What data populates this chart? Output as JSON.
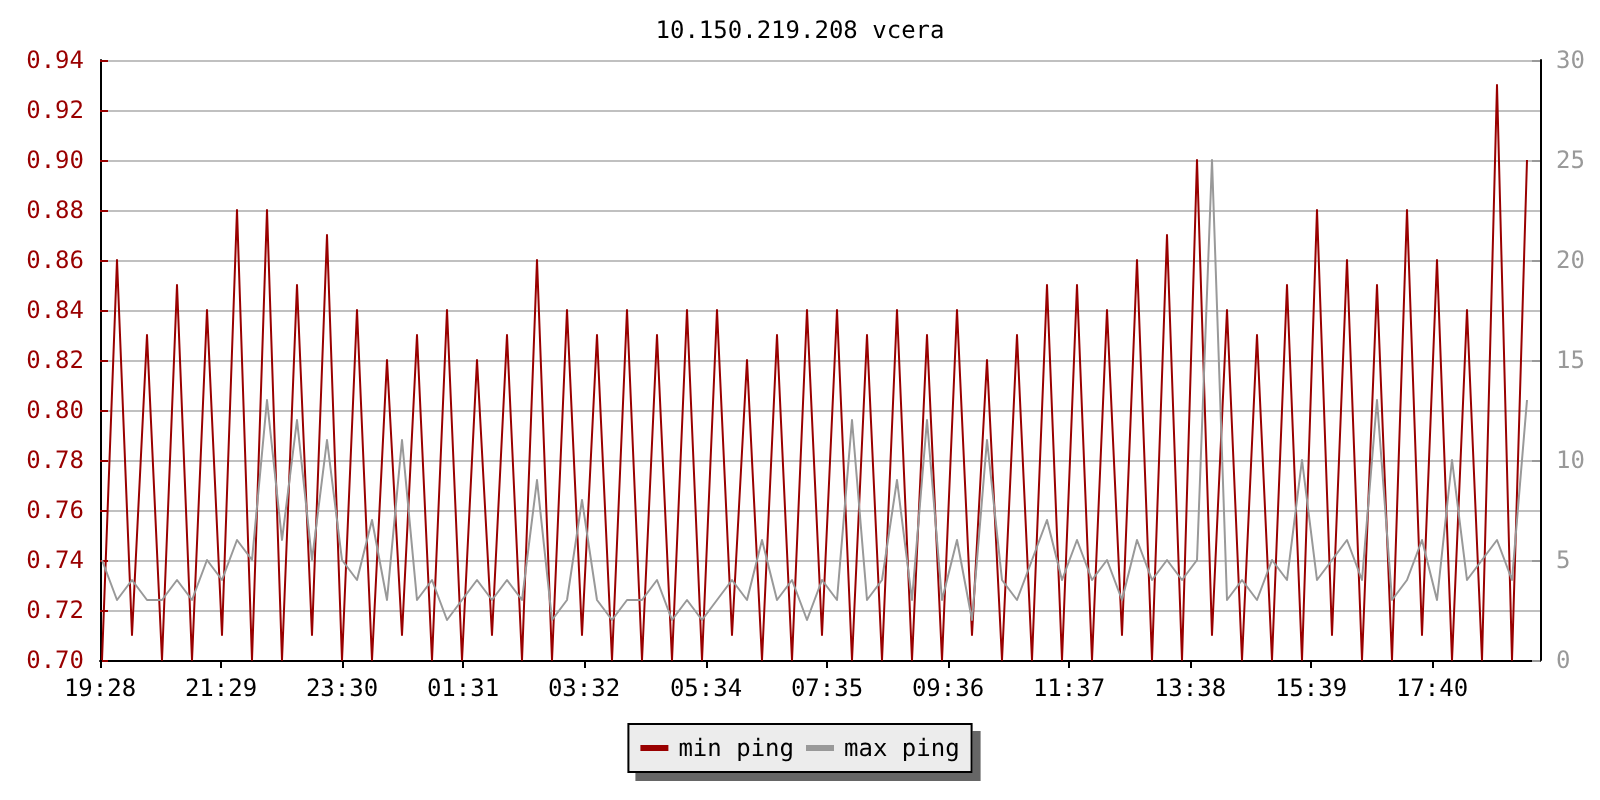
{
  "chart_data": {
    "type": "line",
    "title": "10.150.219.208 vcera",
    "marker": "none",
    "grid": "y",
    "legend": "bottom",
    "line_style": "solid",
    "xlim": [
      "--01-01T19:28",
      "--01-02T19:28"
    ],
    "xticks": [
      {
        "value": "--01-01T19:28",
        "label": "19:28"
      },
      {
        "value": "--01-01T21:29",
        "label": "21:29"
      },
      {
        "value": "--01-01T23:30",
        "label": "23:30"
      },
      {
        "value": "--01-02T01:31",
        "label": "01:31"
      },
      {
        "value": "--01-02T03:32",
        "label": "03:32"
      },
      {
        "value": "--01-02T05:34",
        "label": "05:34"
      },
      {
        "value": "--01-02T07:35",
        "label": "07:35"
      },
      {
        "value": "--01-02T09:36",
        "label": "09:36"
      },
      {
        "value": "--01-02T11:37",
        "label": "11:37"
      },
      {
        "value": "--01-02T13:38",
        "label": "13:38"
      },
      {
        "value": "--01-02T15:39",
        "label": "15:39"
      },
      {
        "value": "--01-02T17:40",
        "label": "17:40"
      }
    ],
    "ylim": [
      0.7,
      0.94
    ],
    "yticks": [
      {
        "value": 0.7,
        "label": "0.70"
      },
      0.72,
      0.74,
      0.76,
      0.78,
      {
        "value": 0.8,
        "label": "0.80"
      },
      0.82,
      0.84,
      0.86,
      0.88,
      {
        "value": 0.9,
        "label": "0.90"
      },
      0.92,
      0.94
    ],
    "y2lim": [
      0,
      30
    ],
    "y2ticks": [
      0,
      5,
      10,
      15,
      20,
      25,
      30
    ],
    "x": [
      "--01-01T19:30",
      "--01-01T19:45",
      "--01-01T20:00",
      "--01-01T20:15",
      "--01-01T20:30",
      "--01-01T20:45",
      "--01-01T21:00",
      "--01-01T21:15",
      "--01-01T21:30",
      "--01-01T21:45",
      "--01-01T22:00",
      "--01-01T22:15",
      "--01-01T22:30",
      "--01-01T22:45",
      "--01-01T23:00",
      "--01-01T23:15",
      "--01-01T23:30",
      "--01-01T23:45",
      "--01-02T00:00",
      "--01-02T00:15",
      "--01-02T00:30",
      "--01-02T00:45",
      "--01-02T01:00",
      "--01-02T01:15",
      "--01-02T01:30",
      "--01-02T01:45",
      "--01-02T02:00",
      "--01-02T02:15",
      "--01-02T02:30",
      "--01-02T02:45",
      "--01-02T03:00",
      "--01-02T03:15",
      "--01-02T03:30",
      "--01-02T03:45",
      "--01-02T04:00",
      "--01-02T04:15",
      "--01-02T04:30",
      "--01-02T04:45",
      "--01-02T05:00",
      "--01-02T05:15",
      "--01-02T05:30",
      "--01-02T05:45",
      "--01-02T06:00",
      "--01-02T06:15",
      "--01-02T06:30",
      "--01-02T06:45",
      "--01-02T07:00",
      "--01-02T07:15",
      "--01-02T07:30",
      "--01-02T07:45",
      "--01-02T08:00",
      "--01-02T08:15",
      "--01-02T08:30",
      "--01-02T08:45",
      "--01-02T09:00",
      "--01-02T09:15",
      "--01-02T09:30",
      "--01-02T09:45",
      "--01-02T10:00",
      "--01-02T10:15",
      "--01-02T10:30",
      "--01-02T10:45",
      "--01-02T11:00",
      "--01-02T11:15",
      "--01-02T11:30",
      "--01-02T11:45",
      "--01-02T12:00",
      "--01-02T12:15",
      "--01-02T12:30",
      "--01-02T12:45",
      "--01-02T13:00",
      "--01-02T13:15",
      "--01-02T13:30",
      "--01-02T13:45",
      "--01-02T14:00",
      "--01-02T14:15",
      "--01-02T14:30",
      "--01-02T14:45",
      "--01-02T15:00",
      "--01-02T15:15",
      "--01-02T15:30",
      "--01-02T15:45",
      "--01-02T16:00",
      "--01-02T16:15",
      "--01-02T16:30",
      "--01-02T16:45",
      "--01-02T17:00",
      "--01-02T17:15",
      "--01-02T17:30",
      "--01-02T17:45",
      "--01-02T18:00",
      "--01-02T18:15",
      "--01-02T18:30",
      "--01-02T18:45",
      "--01-02T19:00",
      "--01-02T19:15"
    ],
    "series": [
      {
        "name": "min ping",
        "color": "#990000",
        "values": [
          0.7,
          0.86,
          0.71,
          0.83,
          0.7,
          0.85,
          0.7,
          0.84,
          0.71,
          0.88,
          0.7,
          0.88,
          0.7,
          0.85,
          0.71,
          0.87,
          0.7,
          0.84,
          0.7,
          0.82,
          0.71,
          0.83,
          0.7,
          0.84,
          0.7,
          0.82,
          0.71,
          0.83,
          0.7,
          0.86,
          0.7,
          0.84,
          0.71,
          0.83,
          0.7,
          0.84,
          0.7,
          0.83,
          0.7,
          0.84,
          0.7,
          0.84,
          0.71,
          0.82,
          0.7,
          0.83,
          0.7,
          0.84,
          0.71,
          0.84,
          0.7,
          0.83,
          0.7,
          0.84,
          0.7,
          0.83,
          0.7,
          0.84,
          0.71,
          0.82,
          0.7,
          0.83,
          0.7,
          0.85,
          0.7,
          0.85,
          0.7,
          0.84,
          0.71,
          0.86,
          0.7,
          0.87,
          0.7,
          0.9,
          0.71,
          0.84,
          0.7,
          0.83,
          0.7,
          0.85,
          0.7,
          0.88,
          0.71,
          0.86,
          0.7,
          0.85,
          0.7,
          0.88,
          0.71,
          0.86,
          0.7,
          0.84,
          0.7,
          0.93,
          0.7,
          0.9
        ]
      },
      {
        "name": "max ping",
        "color": "#999999",
        "axis": "y2",
        "values": [
          5,
          3,
          4,
          3,
          3,
          4,
          3,
          5,
          4,
          6,
          5,
          13,
          6,
          12,
          5,
          11,
          5,
          4,
          7,
          3,
          11,
          3,
          4,
          2,
          3,
          4,
          3,
          4,
          3,
          9,
          2,
          3,
          8,
          3,
          2,
          3,
          3,
          4,
          2,
          3,
          2,
          3,
          4,
          3,
          6,
          3,
          4,
          2,
          4,
          3,
          12,
          3,
          4,
          9,
          3,
          12,
          3,
          6,
          2,
          11,
          4,
          3,
          5,
          7,
          4,
          6,
          4,
          5,
          3,
          6,
          4,
          5,
          4,
          5,
          25,
          3,
          4,
          3,
          5,
          4,
          10,
          4,
          5,
          6,
          4,
          13,
          3,
          4,
          6,
          3,
          10,
          4,
          5,
          6,
          4,
          13
        ]
      }
    ]
  }
}
